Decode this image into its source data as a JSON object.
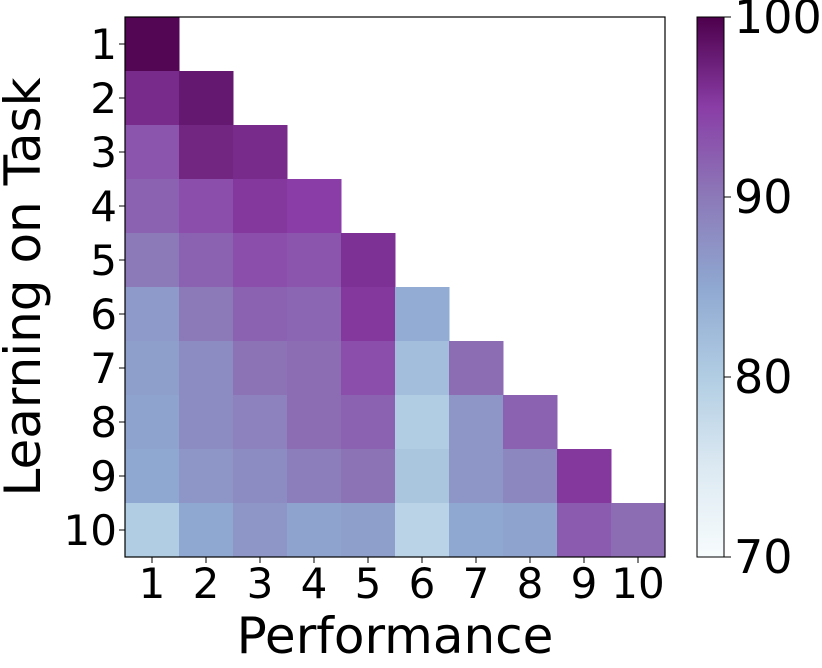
{
  "chart_data": {
    "type": "heatmap",
    "title": "",
    "xlabel": "Performance",
    "ylabel": "Learning on Task",
    "x_categories": [
      "1",
      "2",
      "3",
      "4",
      "5",
      "6",
      "7",
      "8",
      "9",
      "10"
    ],
    "y_categories": [
      "1",
      "2",
      "3",
      "4",
      "5",
      "6",
      "7",
      "8",
      "9",
      "10"
    ],
    "layout": "lower-triangular",
    "values": [
      [
        99.5
      ],
      [
        96.5,
        98
      ],
      [
        93,
        97,
        96.5
      ],
      [
        92,
        93.5,
        95.5,
        95
      ],
      [
        90,
        92,
        93.5,
        93,
        96
      ],
      [
        86.5,
        90,
        92,
        91.5,
        95.5,
        84.5
      ],
      [
        86,
        88,
        90.5,
        91,
        93.5,
        82,
        91
      ],
      [
        85.5,
        88,
        89,
        91,
        92,
        80,
        87,
        92
      ],
      [
        85,
        87,
        88,
        89.5,
        90.5,
        81,
        87,
        88.5,
        95.5
      ],
      [
        80,
        85,
        87,
        85.5,
        86,
        79,
        85,
        85.5,
        92.5,
        91
      ]
    ],
    "colorbar": {
      "range": [
        70,
        100
      ],
      "ticks": [
        "70",
        "80",
        "90",
        "100"
      ],
      "colormap": "BuPu"
    },
    "grid": false
  }
}
